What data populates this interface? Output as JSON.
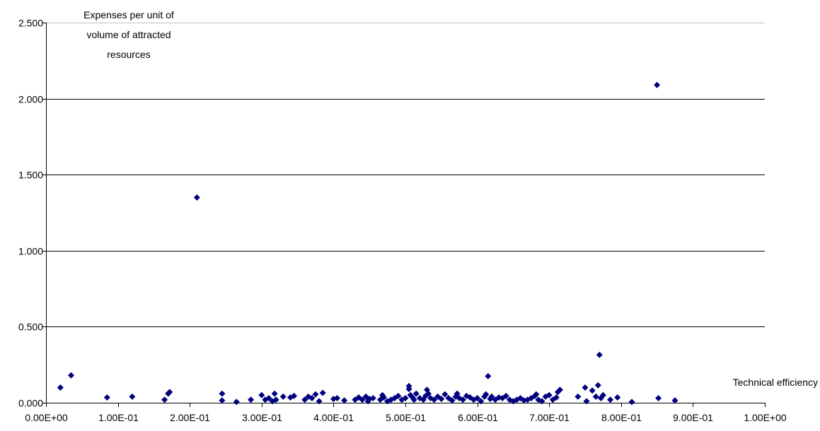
{
  "chart_data": {
    "type": "scatter",
    "ylabel": "Expenses per unit of volume of attracted resources",
    "xlabel": "Technical efficiency",
    "xlim": [
      0,
      1
    ],
    "ylim": [
      0,
      2.5
    ],
    "x_ticks": [
      "0.00E+00",
      "1.00E-01",
      "2.00E-01",
      "3.00E-01",
      "4.00E-01",
      "5.00E-01",
      "6.00E-01",
      "7.00E-01",
      "8.00E-01",
      "9.00E-01",
      "1.00E+00"
    ],
    "y_ticks": [
      "0.000",
      "0.500",
      "1.000",
      "1.500",
      "2.000",
      "2.500"
    ],
    "grid": "horizontal",
    "marker": "diamond",
    "series": [
      {
        "color": "#000080",
        "points": [
          [
            0.02,
            0.1
          ],
          [
            0.035,
            0.18
          ],
          [
            0.085,
            0.035
          ],
          [
            0.12,
            0.04
          ],
          [
            0.165,
            0.02
          ],
          [
            0.17,
            0.06
          ],
          [
            0.172,
            0.07
          ],
          [
            0.21,
            1.35
          ],
          [
            0.245,
            0.06
          ],
          [
            0.245,
            0.015
          ],
          [
            0.265,
            0.005
          ],
          [
            0.285,
            0.02
          ],
          [
            0.3,
            0.05
          ],
          [
            0.305,
            0.02
          ],
          [
            0.31,
            0.03
          ],
          [
            0.315,
            0.01
          ],
          [
            0.318,
            0.06
          ],
          [
            0.32,
            0.02
          ],
          [
            0.33,
            0.04
          ],
          [
            0.34,
            0.035
          ],
          [
            0.345,
            0.045
          ],
          [
            0.36,
            0.02
          ],
          [
            0.365,
            0.04
          ],
          [
            0.37,
            0.03
          ],
          [
            0.375,
            0.055
          ],
          [
            0.38,
            0.01
          ],
          [
            0.385,
            0.065
          ],
          [
            0.4,
            0.025
          ],
          [
            0.405,
            0.03
          ],
          [
            0.415,
            0.015
          ],
          [
            0.43,
            0.02
          ],
          [
            0.435,
            0.035
          ],
          [
            0.44,
            0.02
          ],
          [
            0.445,
            0.04
          ],
          [
            0.448,
            0.01
          ],
          [
            0.45,
            0.025
          ],
          [
            0.455,
            0.03
          ],
          [
            0.465,
            0.02
          ],
          [
            0.468,
            0.05
          ],
          [
            0.47,
            0.035
          ],
          [
            0.475,
            0.01
          ],
          [
            0.48,
            0.02
          ],
          [
            0.485,
            0.03
          ],
          [
            0.49,
            0.045
          ],
          [
            0.495,
            0.02
          ],
          [
            0.5,
            0.03
          ],
          [
            0.505,
            0.11
          ],
          [
            0.505,
            0.09
          ],
          [
            0.507,
            0.05
          ],
          [
            0.51,
            0.035
          ],
          [
            0.512,
            0.02
          ],
          [
            0.515,
            0.06
          ],
          [
            0.52,
            0.03
          ],
          [
            0.525,
            0.02
          ],
          [
            0.528,
            0.045
          ],
          [
            0.53,
            0.085
          ],
          [
            0.532,
            0.06
          ],
          [
            0.535,
            0.03
          ],
          [
            0.54,
            0.02
          ],
          [
            0.545,
            0.04
          ],
          [
            0.55,
            0.025
          ],
          [
            0.555,
            0.055
          ],
          [
            0.56,
            0.03
          ],
          [
            0.565,
            0.015
          ],
          [
            0.57,
            0.04
          ],
          [
            0.572,
            0.06
          ],
          [
            0.575,
            0.03
          ],
          [
            0.58,
            0.02
          ],
          [
            0.585,
            0.045
          ],
          [
            0.59,
            0.035
          ],
          [
            0.595,
            0.02
          ],
          [
            0.6,
            0.03
          ],
          [
            0.605,
            0.01
          ],
          [
            0.61,
            0.04
          ],
          [
            0.612,
            0.055
          ],
          [
            0.615,
            0.175
          ],
          [
            0.618,
            0.025
          ],
          [
            0.62,
            0.04
          ],
          [
            0.625,
            0.02
          ],
          [
            0.63,
            0.035
          ],
          [
            0.635,
            0.03
          ],
          [
            0.64,
            0.045
          ],
          [
            0.645,
            0.02
          ],
          [
            0.65,
            0.01
          ],
          [
            0.655,
            0.02
          ],
          [
            0.66,
            0.03
          ],
          [
            0.665,
            0.015
          ],
          [
            0.67,
            0.02
          ],
          [
            0.675,
            0.03
          ],
          [
            0.68,
            0.045
          ],
          [
            0.682,
            0.055
          ],
          [
            0.685,
            0.02
          ],
          [
            0.69,
            0.01
          ],
          [
            0.695,
            0.04
          ],
          [
            0.7,
            0.05
          ],
          [
            0.705,
            0.02
          ],
          [
            0.71,
            0.035
          ],
          [
            0.712,
            0.07
          ],
          [
            0.715,
            0.085
          ],
          [
            0.74,
            0.04
          ],
          [
            0.75,
            0.1
          ],
          [
            0.752,
            0.01
          ],
          [
            0.76,
            0.08
          ],
          [
            0.765,
            0.04
          ],
          [
            0.768,
            0.115
          ],
          [
            0.77,
            0.315
          ],
          [
            0.772,
            0.03
          ],
          [
            0.775,
            0.05
          ],
          [
            0.785,
            0.02
          ],
          [
            0.795,
            0.035
          ],
          [
            0.815,
            0.005
          ],
          [
            0.85,
            2.09
          ],
          [
            0.852,
            0.03
          ],
          [
            0.875,
            0.015
          ]
        ]
      }
    ]
  }
}
